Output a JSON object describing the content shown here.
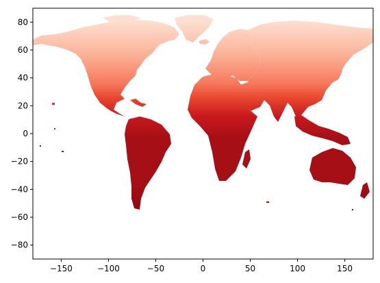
{
  "chart_data": {
    "type": "heatmap",
    "title": "",
    "xlabel": "",
    "ylabel": "",
    "xlim": [
      -180,
      180
    ],
    "ylim": [
      -90,
      90
    ],
    "xticks": [
      -150,
      -100,
      -50,
      0,
      50,
      100,
      150
    ],
    "yticks": [
      80,
      60,
      40,
      20,
      0,
      -20,
      -40,
      -60,
      -80
    ],
    "xtick_labels": [
      "−150",
      "−100",
      "−50",
      "0",
      "50",
      "100",
      "150"
    ],
    "ytick_labels": [
      "80",
      "60",
      "40",
      "20",
      "0",
      "−20",
      "−40",
      "−60",
      "−80"
    ],
    "grid": false,
    "legend": "none",
    "colormap": "Reds",
    "colors": {
      "polar": "#fde0d2",
      "cold": "#fbb49a",
      "cool": "#f6795c",
      "mild": "#e8452f",
      "warm": "#c8191e",
      "hot": "#a50f15",
      "hottest": "#7f0510"
    }
  }
}
